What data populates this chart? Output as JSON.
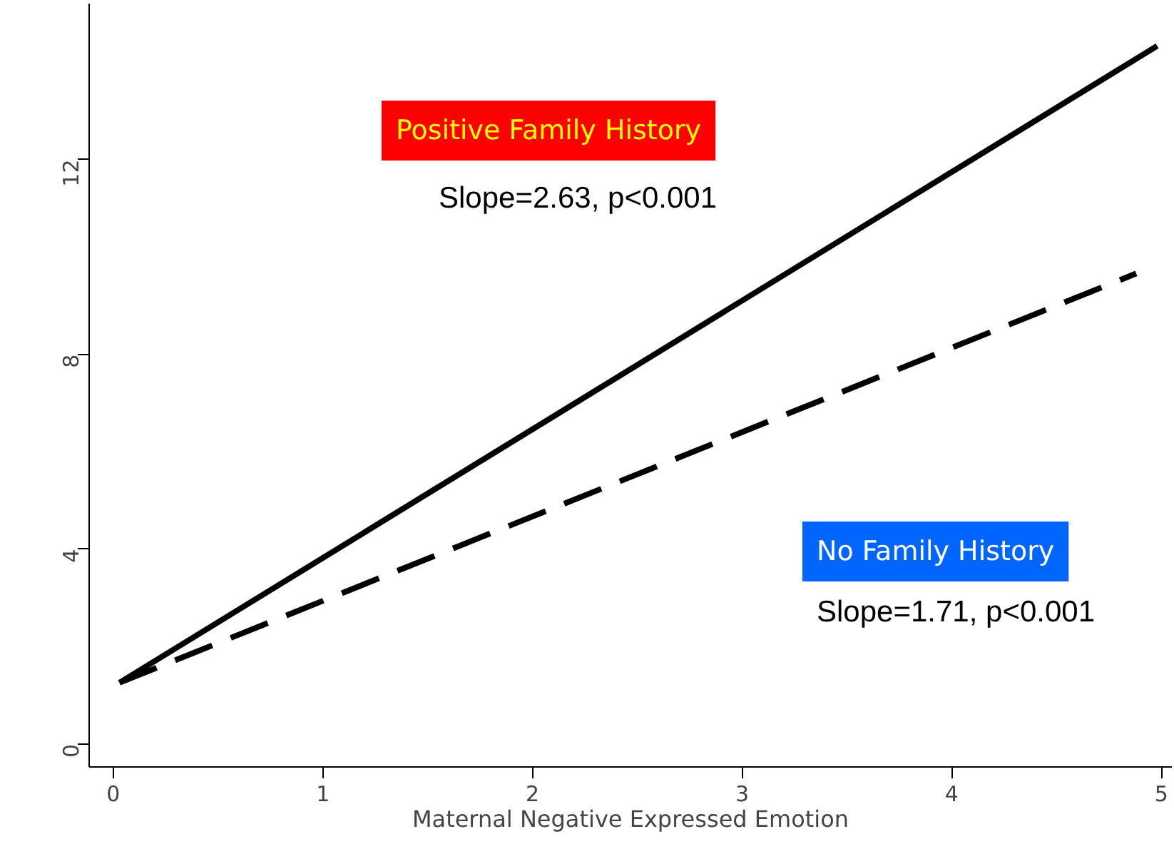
{
  "chart_data": {
    "type": "line",
    "xlabel": "Maternal Negative Expressed Emotion",
    "xlim": [
      -0.115,
      5.05
    ],
    "ylim": [
      -0.47,
      15.2
    ],
    "xticks": [
      0,
      1,
      2,
      3,
      4,
      5
    ],
    "yticks": [
      0,
      4,
      8,
      12
    ],
    "series": [
      {
        "color": "#000000",
        "line_style": "solid",
        "x": [
          0.03,
          4.98
        ],
        "values": [
          1.26,
          14.33
        ]
      },
      {
        "color": "#000000",
        "line_style": "dashed",
        "x": [
          0.03,
          4.88
        ],
        "values": [
          1.26,
          9.66
        ]
      }
    ],
    "annotations": [
      "Positive Family History",
      "Slope=2.63, p<0.001",
      "No Family History",
      "Slope=1.71, p<0.001"
    ],
    "grid": false,
    "marker": "none"
  }
}
